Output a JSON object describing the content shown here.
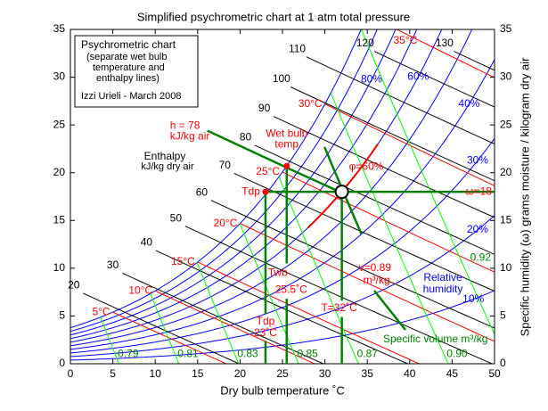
{
  "chart_data": {
    "type": "psychrometric",
    "title": "Simplified psychrometric chart at 1 atm total pressure",
    "x_label": "Dry bulb temperature ˚C",
    "y_label": "Specific humidity (ω) grams moisture / kilogram dry air",
    "xlim": [
      0,
      50
    ],
    "ylim": [
      0,
      35
    ],
    "xticks": [
      0,
      5,
      10,
      15,
      20,
      25,
      30,
      35,
      40,
      45,
      50
    ],
    "yticks": [
      0,
      5,
      10,
      15,
      20,
      25,
      30,
      35
    ],
    "y2lim": [
      0,
      35
    ],
    "y2ticks": [
      0,
      5,
      10,
      15,
      20,
      25,
      30,
      35
    ],
    "pressure_kpa": 101.325,
    "info_box": [
      "Psychrometric chart",
      "(separate wet bulb",
      "temperature and",
      "enthalpy lines)",
      "Izzi Urieli - March 2008"
    ],
    "relative_humidity": {
      "name_lines": [
        "Relative",
        "humidity"
      ],
      "color": "#0000ff",
      "levels": [
        10,
        20,
        30,
        40,
        50,
        60,
        70,
        80,
        90,
        100
      ],
      "labels": [
        {
          "value": 10,
          "label": "10%"
        },
        {
          "value": 20,
          "label": "20%"
        },
        {
          "value": 30,
          "label": "30%"
        },
        {
          "value": 40,
          "label": "40%"
        },
        {
          "value": 60,
          "label": "60%"
        },
        {
          "value": 80,
          "label": "80%"
        }
      ]
    },
    "enthalpy": {
      "name_lines": [
        "Enthalpy",
        "kJ/kg dry air"
      ],
      "color": "#000000",
      "levels": [
        20,
        30,
        40,
        50,
        60,
        70,
        80,
        90,
        100,
        110,
        120,
        130
      ]
    },
    "wet_bulb": {
      "name_lines": [
        "Wet bulb",
        "temp"
      ],
      "color": "#ff0000",
      "levels": [
        {
          "value": 5,
          "label": "5°C"
        },
        {
          "value": 10,
          "label": "10°C"
        },
        {
          "value": 15,
          "label": "15°C"
        },
        {
          "value": 20,
          "label": "20°C"
        },
        {
          "value": 25,
          "label": "25°C"
        },
        {
          "value": 30,
          "label": "30°C"
        },
        {
          "value": 35,
          "label": "35°C"
        }
      ]
    },
    "specific_volume": {
      "name": "Specific volume m³/kg",
      "color": "#00ff00",
      "label_color": "#008000",
      "levels": [
        0.79,
        0.81,
        0.83,
        0.85,
        0.87,
        {
          "value": 0.9,
          "label": "0.90"
        },
        0.92
      ]
    },
    "state_point": {
      "color": "#008000",
      "label_color": "#ff0000",
      "x": 32,
      "y": 18,
      "t": {
        "value": 32,
        "label": "T=32˚C"
      },
      "omega": {
        "value": 18,
        "label": "ω=18"
      },
      "rh": {
        "value": 60,
        "label": "φ=60%"
      },
      "tdp": {
        "value": 23,
        "label": [
          "Tdp",
          "23˚C"
        ]
      },
      "tdp_point_label": "Tdp",
      "twb": {
        "value": 25.5,
        "label": [
          "Twb",
          "25.5˚C"
        ]
      },
      "h": {
        "value": 78,
        "label": [
          "h = 78",
          "kJ/kg air"
        ]
      },
      "v": {
        "value": 0.89,
        "label": [
          "v=0.89",
          "m³/kg"
        ]
      }
    }
  }
}
